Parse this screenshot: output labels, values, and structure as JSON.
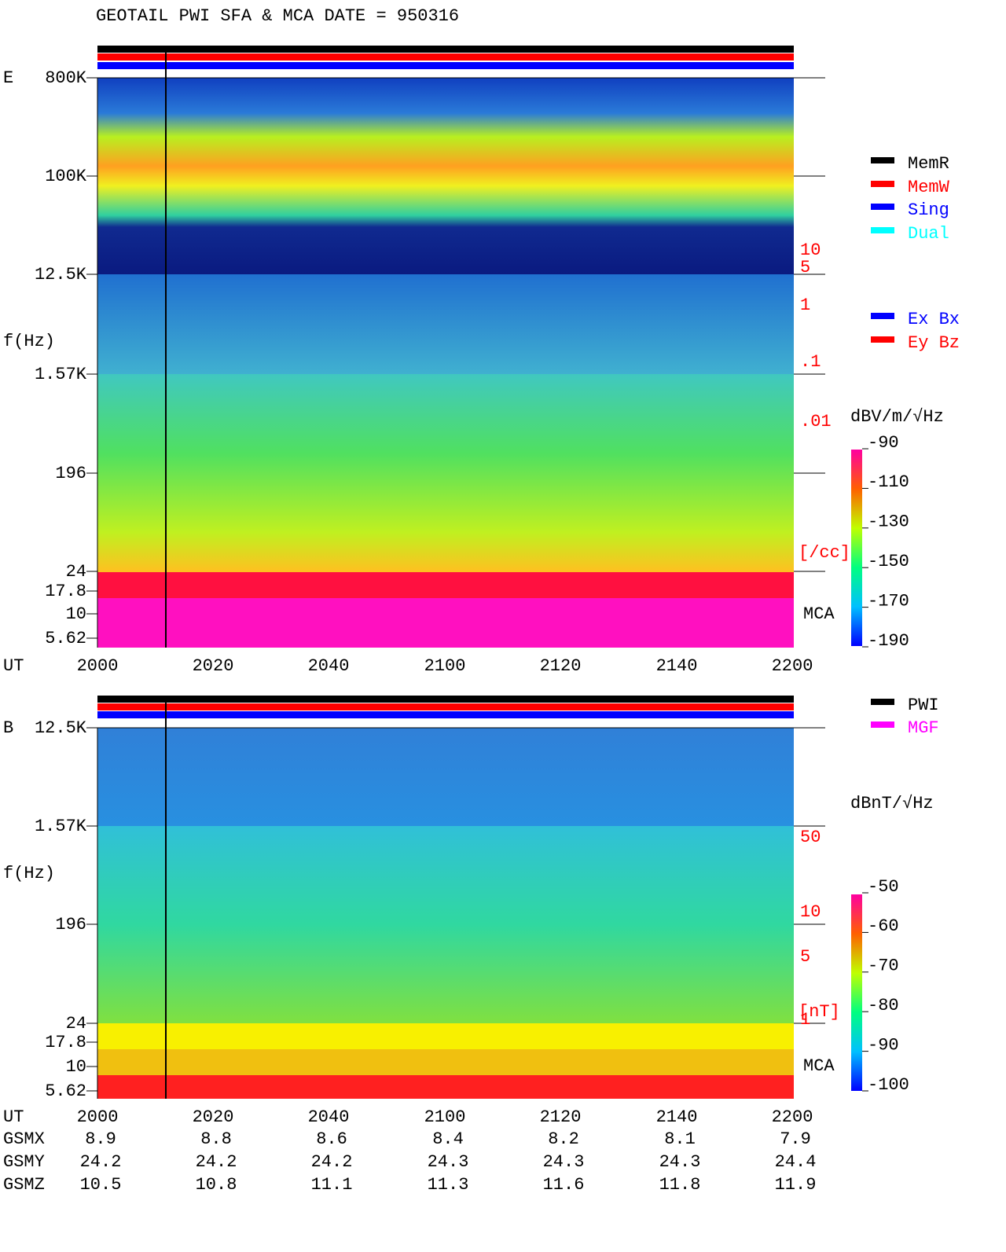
{
  "title": "GEOTAIL  PWI SFA & MCA   DATE = 950316",
  "e_panel": {
    "label": "E",
    "y_axis_label": "f(Hz)",
    "y_labels": [
      "800K",
      "100K",
      "12.5K",
      "1.57K",
      "196",
      "24",
      "17.8",
      "10",
      "5.62"
    ],
    "density_labels": [
      "10",
      "5",
      "1",
      ".1",
      ".01"
    ],
    "density_unit": "[/cc]",
    "mca": "MCA",
    "x_axis_label": "UT",
    "x_labels": [
      "2000",
      "2020",
      "2040",
      "2100",
      "2120",
      "2140",
      "2200"
    ],
    "colorbar_unit": "dBV/m/√Hz",
    "colorbar_labels": [
      -90,
      -110,
      -130,
      -150,
      -170,
      -190
    ]
  },
  "legend_mode": [
    {
      "label": "MemR",
      "color": "#000000"
    },
    {
      "label": "MemW",
      "color": "#ff0000"
    },
    {
      "label": "Sing",
      "color": "#0000ff"
    },
    {
      "label": "Dual",
      "color": "#00ffff"
    }
  ],
  "legend_antenna": [
    {
      "label": "Ex Bx",
      "color": "#0000ff"
    },
    {
      "label": "Ey Bz",
      "color": "#ff0000"
    }
  ],
  "b_panel": {
    "label": "B",
    "y_axis_label": "f(Hz)",
    "y_labels": [
      "12.5K",
      "1.57K",
      "196",
      "24",
      "17.8",
      "10",
      "5.62"
    ],
    "density_labels": [
      "50",
      "10",
      "5",
      "1"
    ],
    "density_unit": "[nT]",
    "mca": "MCA",
    "x_axis_label": "UT",
    "x_labels": [
      "2000",
      "2020",
      "2040",
      "2100",
      "2120",
      "2140",
      "2200"
    ],
    "colorbar_unit": "dBnT/√Hz",
    "colorbar_labels": [
      -50,
      -60,
      -70,
      -80,
      -90,
      -100
    ]
  },
  "legend_source": [
    {
      "label": "PWI",
      "color": "#000000"
    },
    {
      "label": "MGF",
      "color": "#ff00ff"
    }
  ],
  "orbit": [
    {
      "label": "GSMX",
      "values": [
        8.9,
        8.8,
        8.6,
        8.4,
        8.2,
        8.1,
        7.9
      ]
    },
    {
      "label": "GSMY",
      "values": [
        24.2,
        24.2,
        24.2,
        24.3,
        24.3,
        24.3,
        24.4
      ]
    },
    {
      "label": "GSMZ",
      "values": [
        10.5,
        10.8,
        11.1,
        11.3,
        11.6,
        11.8,
        11.9
      ]
    }
  ]
}
